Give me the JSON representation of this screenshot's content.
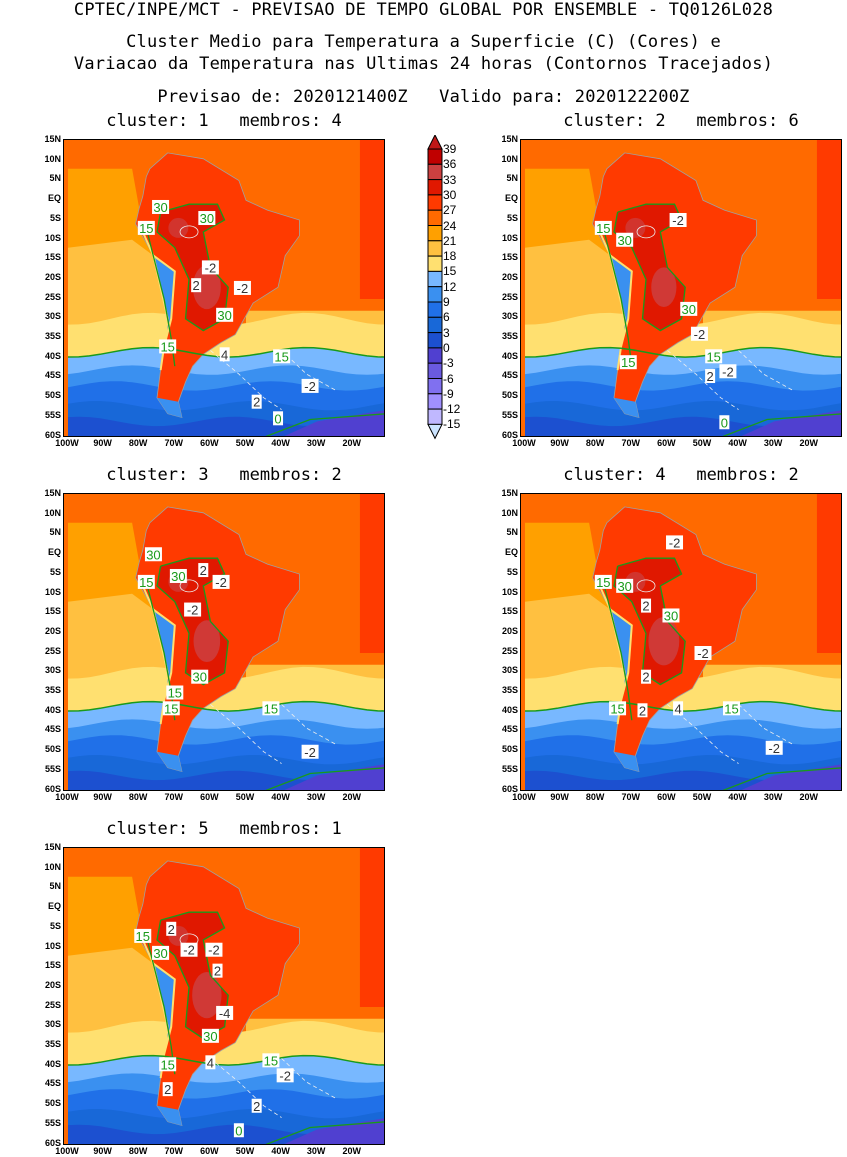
{
  "header": {
    "line1": "CPTEC/INPE/MCT - PREVISAO DE TEMPO GLOBAL POR ENSEMBLE - TQ0126L028",
    "line2": "Cluster Medio para Temperatura a Superficie (C) (Cores) e",
    "line3": "Variacao da Temperatura nas Ultimas 24 horas (Contornos Tracejados)",
    "line4": "Previsao de: 2020121400Z   Valido para: 2020122200Z"
  },
  "axes": {
    "lat_ticks": [
      "15N",
      "10N",
      "5N",
      "EQ",
      "5S",
      "10S",
      "15S",
      "20S",
      "25S",
      "30S",
      "35S",
      "40S",
      "45S",
      "50S",
      "55S",
      "60S"
    ],
    "lon_ticks": [
      "100W",
      "90W",
      "80W",
      "70W",
      "60W",
      "50W",
      "40W",
      "30W",
      "20W"
    ],
    "lon_range": [
      -100,
      -11
    ],
    "lat_range": [
      -60,
      15
    ]
  },
  "colorbar": {
    "labels": [
      "39",
      "36",
      "33",
      "30",
      "27",
      "24",
      "21",
      "18",
      "15",
      "12",
      "9",
      "6",
      "3",
      "0",
      "-3",
      "-6",
      "-9",
      "-12",
      "-15"
    ],
    "colors": [
      "#c01818",
      "#c00000",
      "#cc4040",
      "#e01800",
      "#ff3a00",
      "#ff6a00",
      "#ffa000",
      "#ffc040",
      "#ffe070",
      "#78b8ff",
      "#3a90f0",
      "#2070e8",
      "#1868d8",
      "#1c50d0",
      "#5040d0",
      "#6a5ae0",
      "#8070f0",
      "#a090ff",
      "#c0b8ff",
      "#cce4ff"
    ]
  },
  "panels": [
    {
      "title": "cluster: 1   membros: 4",
      "hot": 1.0,
      "labels": [
        {
          "t": "15",
          "c": "green",
          "lon": -78,
          "lat": -7
        },
        {
          "t": "30",
          "c": "green",
          "lon": -74,
          "lat": -5.5
        },
        {
          "t": "30",
          "c": "green",
          "lon": -61,
          "lat": -4.5
        },
        {
          "t": "-2",
          "c": "white",
          "lon": -60,
          "lat": -17
        },
        {
          "t": "2",
          "c": "white",
          "lon": -64,
          "lat": -21.5
        },
        {
          "t": "30",
          "c": "green",
          "lon": -56,
          "lat": -29
        },
        {
          "t": "-2",
          "c": "white",
          "lon": -51,
          "lat": -26
        },
        {
          "t": "15",
          "c": "green",
          "lon": -72,
          "lat": -37
        },
        {
          "t": "4",
          "c": "white",
          "lon": -56,
          "lat": -39
        },
        {
          "t": "15",
          "c": "green",
          "lon": -40,
          "lat": -39.5
        },
        {
          "t": "-2",
          "c": "white",
          "lon": -32,
          "lat": -47
        },
        {
          "t": "2",
          "c": "white",
          "lon": -47,
          "lat": -51
        },
        {
          "t": "0",
          "c": "green",
          "lon": -41,
          "lat": -59
        }
      ]
    },
    {
      "title": "cluster: 2   membros: 6",
      "hot": 0.9,
      "labels": [
        {
          "t": "15",
          "c": "green",
          "lon": -78,
          "lat": -7
        },
        {
          "t": "30",
          "c": "green",
          "lon": -72,
          "lat": -10
        },
        {
          "t": "-2",
          "c": "white",
          "lon": -57,
          "lat": -5
        },
        {
          "t": "30",
          "c": "green",
          "lon": -54,
          "lat": -27.5
        },
        {
          "t": "-2",
          "c": "white",
          "lon": -51,
          "lat": -30
        },
        {
          "t": "15",
          "c": "green",
          "lon": -71,
          "lat": -41
        },
        {
          "t": "15",
          "c": "green",
          "lon": -47,
          "lat": -39.5
        },
        {
          "t": "-2",
          "c": "white",
          "lon": -43,
          "lat": -39.5
        },
        {
          "t": "2",
          "c": "white",
          "lon": -48,
          "lat": -44.5
        },
        {
          "t": "0",
          "c": "green",
          "lon": -44,
          "lat": -60
        }
      ]
    },
    {
      "title": "cluster: 3   membros: 2",
      "hot": 0.95,
      "labels": [
        {
          "t": "30",
          "c": "green",
          "lon": -76,
          "lat": 0
        },
        {
          "t": "15",
          "c": "green",
          "lon": -78,
          "lat": -7
        },
        {
          "t": "30",
          "c": "green",
          "lon": -69,
          "lat": -5.5
        },
        {
          "t": "2",
          "c": "white",
          "lon": -62,
          "lat": -4
        },
        {
          "t": "-2",
          "c": "white",
          "lon": -57,
          "lat": -7
        },
        {
          "t": "-2",
          "c": "white",
          "lon": -65,
          "lat": -14
        },
        {
          "t": "30",
          "c": "green",
          "lon": -63,
          "lat": -31
        },
        {
          "t": "15",
          "c": "green",
          "lon": -70,
          "lat": -35
        },
        {
          "t": "15",
          "c": "green",
          "lon": -71,
          "lat": -39
        },
        {
          "t": "15",
          "c": "green",
          "lon": -43,
          "lat": -39
        },
        {
          "t": "-2",
          "c": "white",
          "lon": -32,
          "lat": -50
        }
      ]
    },
    {
      "title": "cluster: 4   membros: 2",
      "hot": 1.1,
      "labels": [
        {
          "t": "-2",
          "c": "white",
          "lon": -58,
          "lat": 3
        },
        {
          "t": "15",
          "c": "green",
          "lon": -78,
          "lat": -7
        },
        {
          "t": "30",
          "c": "green",
          "lon": -72,
          "lat": -8
        },
        {
          "t": "2",
          "c": "white",
          "lon": -66,
          "lat": -13
        },
        {
          "t": "30",
          "c": "green",
          "lon": -59,
          "lat": -15.5
        },
        {
          "t": "-2",
          "c": "white",
          "lon": -50,
          "lat": -25
        },
        {
          "t": "2",
          "c": "white",
          "lon": -66,
          "lat": -31
        },
        {
          "t": "15",
          "c": "green",
          "lon": -74,
          "lat": -39
        },
        {
          "t": "2",
          "c": "white",
          "lon": -67,
          "lat": -39.5
        },
        {
          "t": "4",
          "c": "white",
          "lon": -57,
          "lat": -39
        },
        {
          "t": "15",
          "c": "green",
          "lon": -42,
          "lat": -39
        },
        {
          "t": "-2",
          "c": "white",
          "lon": -30,
          "lat": -49
        }
      ]
    },
    {
      "title": "cluster: 5   membros: 1",
      "hot": 1.05,
      "labels": [
        {
          "t": "15",
          "c": "green",
          "lon": -79,
          "lat": -7
        },
        {
          "t": "30",
          "c": "green",
          "lon": -74,
          "lat": -7.5
        },
        {
          "t": "2",
          "c": "white",
          "lon": -71,
          "lat": -9
        },
        {
          "t": "-2",
          "c": "white",
          "lon": -66,
          "lat": -10.5
        },
        {
          "t": "-2",
          "c": "white",
          "lon": -59,
          "lat": -10.5
        },
        {
          "t": "2",
          "c": "white",
          "lon": -58,
          "lat": -12
        },
        {
          "t": "-4",
          "c": "white",
          "lon": -56,
          "lat": -26.5
        },
        {
          "t": "30",
          "c": "green",
          "lon": -60,
          "lat": -28.5
        },
        {
          "t": "4",
          "c": "white",
          "lon": -60,
          "lat": -39
        },
        {
          "t": "15",
          "c": "green",
          "lon": -72,
          "lat": -39.5
        },
        {
          "t": "2",
          "c": "white",
          "lon": -72,
          "lat": -42
        },
        {
          "t": "15",
          "c": "green",
          "lon": -43,
          "lat": -38.5
        },
        {
          "t": "-2",
          "c": "white",
          "lon": -39,
          "lat": -38.5
        },
        {
          "t": "2",
          "c": "white",
          "lon": -47,
          "lat": -50
        },
        {
          "t": "0",
          "c": "green",
          "lon": -52,
          "lat": -60
        }
      ]
    }
  ]
}
